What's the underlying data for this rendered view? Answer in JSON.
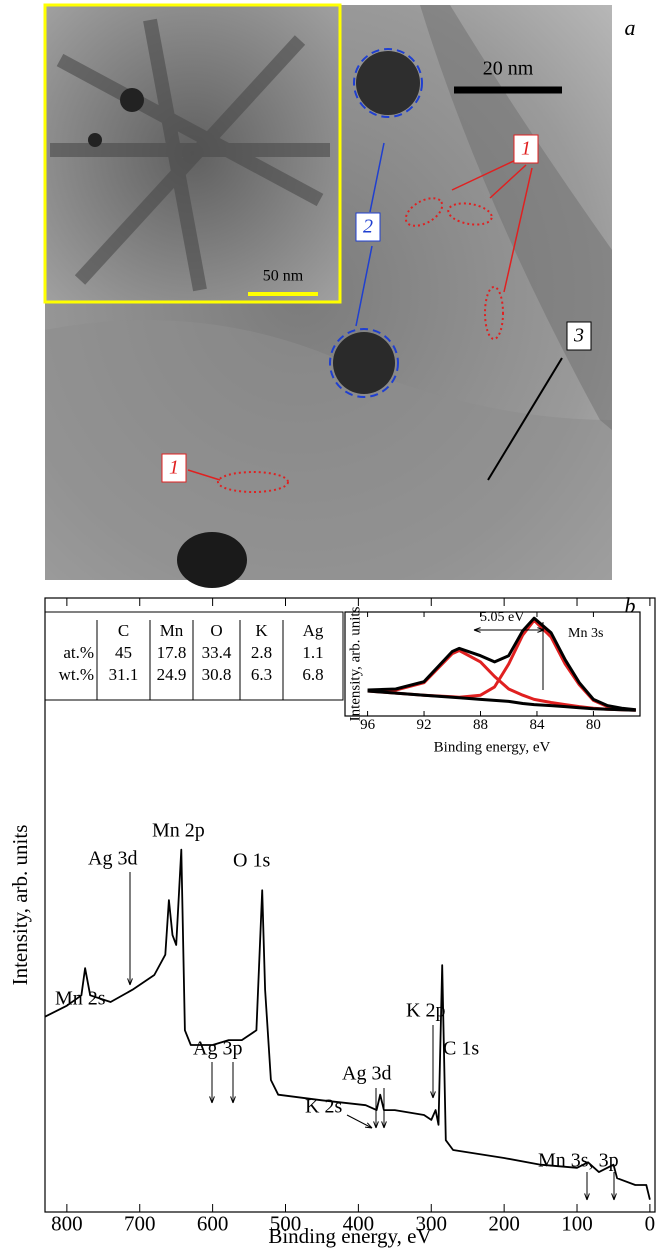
{
  "panel_a": {
    "label": "a",
    "scale_bar": "20 nm",
    "inset_scale_bar": "50 nm",
    "markers": [
      "1",
      "2",
      "3",
      "1"
    ]
  },
  "panel_b": {
    "label": "b",
    "table": {
      "columns": [
        "C",
        "Mn",
        "O",
        "K",
        "Ag"
      ],
      "rows": [
        {
          "label": "at.%",
          "values": [
            45,
            17.8,
            33.4,
            2.8,
            1.1
          ]
        },
        {
          "label": "wt.%",
          "values": [
            31.1,
            24.9,
            30.8,
            6.3,
            6.8
          ]
        }
      ]
    }
  },
  "chart_data": [
    {
      "type": "line",
      "x_label": "Binding energy, eV",
      "y_label": "Intensity, arb. units",
      "xlim": [
        830,
        -7
      ],
      "xticks": [
        800,
        700,
        600,
        500,
        400,
        300,
        200,
        100,
        0
      ],
      "ylim": [
        0,
        100
      ],
      "annotations": [
        "Mn 2s",
        "Ag 3d",
        "Mn 2p",
        "O 1s",
        "Ag 3p",
        "K 2s",
        "Ag 3d",
        "K 2p",
        "C 1s",
        "Mn 3s, 3p"
      ],
      "x": [
        830,
        800,
        780,
        775,
        768,
        740,
        710,
        680,
        665,
        660,
        655,
        650,
        643,
        638,
        630,
        600,
        578,
        560,
        540,
        532,
        528,
        520,
        510,
        450,
        390,
        375,
        370,
        365,
        350,
        310,
        300,
        294,
        290,
        285,
        280,
        270,
        200,
        150,
        100,
        85,
        70,
        50,
        45,
        20,
        5,
        0
      ],
      "series": [
        {
          "color": "#000000",
          "values": [
            31.8,
            33.6,
            35.3,
            39.7,
            35.3,
            34.2,
            36.2,
            38.6,
            41.9,
            50.8,
            45.1,
            43.5,
            59.0,
            29.6,
            27.2,
            27.2,
            28.0,
            28.0,
            29.6,
            52.4,
            36.2,
            21.5,
            19.1,
            18.2,
            17.4,
            16.6,
            19.1,
            16.6,
            16.6,
            15.8,
            15.0,
            16.6,
            14.2,
            40.2,
            11.7,
            10.1,
            8.8,
            7.7,
            7.2,
            8.1,
            6.5,
            7.7,
            5.5,
            4.4,
            4.4,
            2.0
          ]
        }
      ]
    },
    {
      "type": "line",
      "x_label": "Binding energy, eV",
      "y_label": "Intensity, arb. units",
      "xlim": [
        97.6,
        76.7
      ],
      "xticks": [
        96,
        92,
        88,
        84,
        80
      ],
      "ylim": [
        0,
        100
      ],
      "annotations": [
        "5.05 eV",
        "Mn 3s"
      ],
      "x": [
        96,
        94,
        92,
        90,
        89.5,
        88,
        87,
        86,
        85,
        84.2,
        83,
        82,
        81,
        80,
        79,
        78,
        77
      ],
      "series": [
        {
          "color": "#e02020",
          "values": [
            24,
            25,
            32,
            60,
            63,
            52,
            38,
            26,
            20,
            16,
            13,
            11,
            9,
            7.5,
            6.5,
            6,
            5.5
          ]
        },
        {
          "color": "#e02020",
          "values": [
            24,
            22,
            20,
            18.5,
            18,
            20,
            28,
            50,
            78,
            92,
            76,
            50,
            30,
            15,
            9,
            7,
            5.8
          ]
        },
        {
          "color": "#000000",
          "values": [
            24,
            22,
            20,
            18,
            17.5,
            16,
            15,
            14,
            12,
            11,
            10,
            9,
            8,
            7,
            6.5,
            6,
            5.5
          ]
        },
        {
          "color": "#000000",
          "values": [
            25,
            26,
            33,
            62,
            65,
            58,
            52,
            58,
            82,
            94,
            80,
            54,
            32,
            16,
            10,
            7.5,
            6
          ]
        }
      ]
    }
  ]
}
